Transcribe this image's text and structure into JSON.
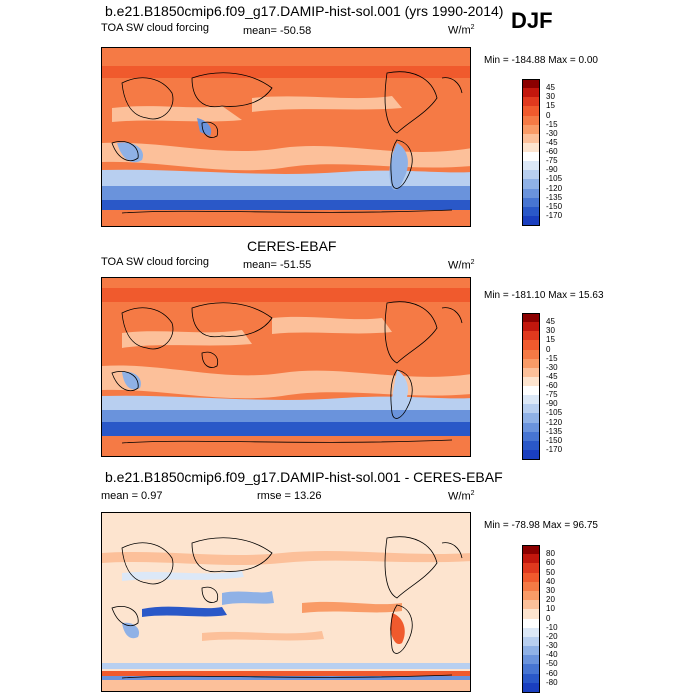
{
  "season": "DJF",
  "colorbar_abs": {
    "labels": [
      "45",
      "30",
      "15",
      "0",
      "-15",
      "-30",
      "-45",
      "-60",
      "-75",
      "-90",
      "-105",
      "-120",
      "-135",
      "-150",
      "-170"
    ],
    "colors": [
      "#8b0000",
      "#c2170d",
      "#e0391e",
      "#f05a2d",
      "#f57a45",
      "#f99b67",
      "#fcc09a",
      "#fde4cf",
      "#ffffff",
      "#dce8f7",
      "#b8cff0",
      "#8fb1e6",
      "#6a93dc",
      "#4775d2",
      "#2a58c8",
      "#1a3fbf"
    ]
  },
  "colorbar_diff": {
    "labels": [
      "80",
      "60",
      "50",
      "40",
      "30",
      "20",
      "10",
      "0",
      "-10",
      "-20",
      "-30",
      "-40",
      "-50",
      "-60",
      "-80"
    ],
    "colors": [
      "#8b0000",
      "#c2170d",
      "#e0391e",
      "#f05a2d",
      "#f57a45",
      "#f99b67",
      "#fcc09a",
      "#fde4cf",
      "#ffffff",
      "#dce8f7",
      "#b8cff0",
      "#8fb1e6",
      "#6a93dc",
      "#4775d2",
      "#2a58c8",
      "#1a3fbf"
    ]
  },
  "panels": [
    {
      "title": "b.e21.B1850cmip6.f09_g17.DAMIP-hist-sol.001 (yrs 1990-2014)",
      "left": "TOA SW cloud forcing",
      "mid": "mean= -50.58",
      "units": "W/m",
      "minmax": "Min = -184.88 Max =   0.00"
    },
    {
      "title": "CERES-EBAF",
      "left": "TOA SW cloud forcing",
      "mid": "mean= -51.55",
      "units": "W/m",
      "minmax": "Min = -181.10 Max =  15.63"
    },
    {
      "title": "b.e21.B1850cmip6.f09_g17.DAMIP-hist-sol.001 - CERES-EBAF",
      "left": "mean =   0.97",
      "mid": "rmse =  13.26",
      "units": "W/m",
      "minmax": "Min = -78.98 Max =  96.75"
    }
  ],
  "chart_data": [
    {
      "type": "heatmap",
      "title": "b.e21.B1850cmip6.f09_g17.DAMIP-hist-sol.001 (yrs 1990-2014)",
      "subtitle_left": "TOA SW cloud forcing",
      "subtitle_center": "mean= -50.58",
      "units": "W/m2",
      "min": -184.88,
      "max": 0.0,
      "mean": -50.58,
      "color_levels": [
        45,
        30,
        15,
        0,
        -15,
        -30,
        -45,
        -60,
        -75,
        -90,
        -105,
        -120,
        -135,
        -150,
        -170
      ]
    },
    {
      "type": "heatmap",
      "title": "CERES-EBAF",
      "subtitle_left": "TOA SW cloud forcing",
      "subtitle_center": "mean= -51.55",
      "units": "W/m2",
      "min": -181.1,
      "max": 15.63,
      "mean": -51.55,
      "color_levels": [
        45,
        30,
        15,
        0,
        -15,
        -30,
        -45,
        -60,
        -75,
        -90,
        -105,
        -120,
        -135,
        -150,
        -170
      ]
    },
    {
      "type": "heatmap",
      "title": "b.e21.B1850cmip6.f09_g17.DAMIP-hist-sol.001 - CERES-EBAF",
      "subtitle_left": "mean =   0.97",
      "subtitle_center": "rmse =  13.26",
      "units": "W/m2",
      "min": -78.98,
      "max": 96.75,
      "mean": 0.97,
      "rmse": 13.26,
      "color_levels": [
        80,
        60,
        50,
        40,
        30,
        20,
        10,
        0,
        -10,
        -20,
        -30,
        -40,
        -50,
        -60,
        -80
      ]
    }
  ]
}
